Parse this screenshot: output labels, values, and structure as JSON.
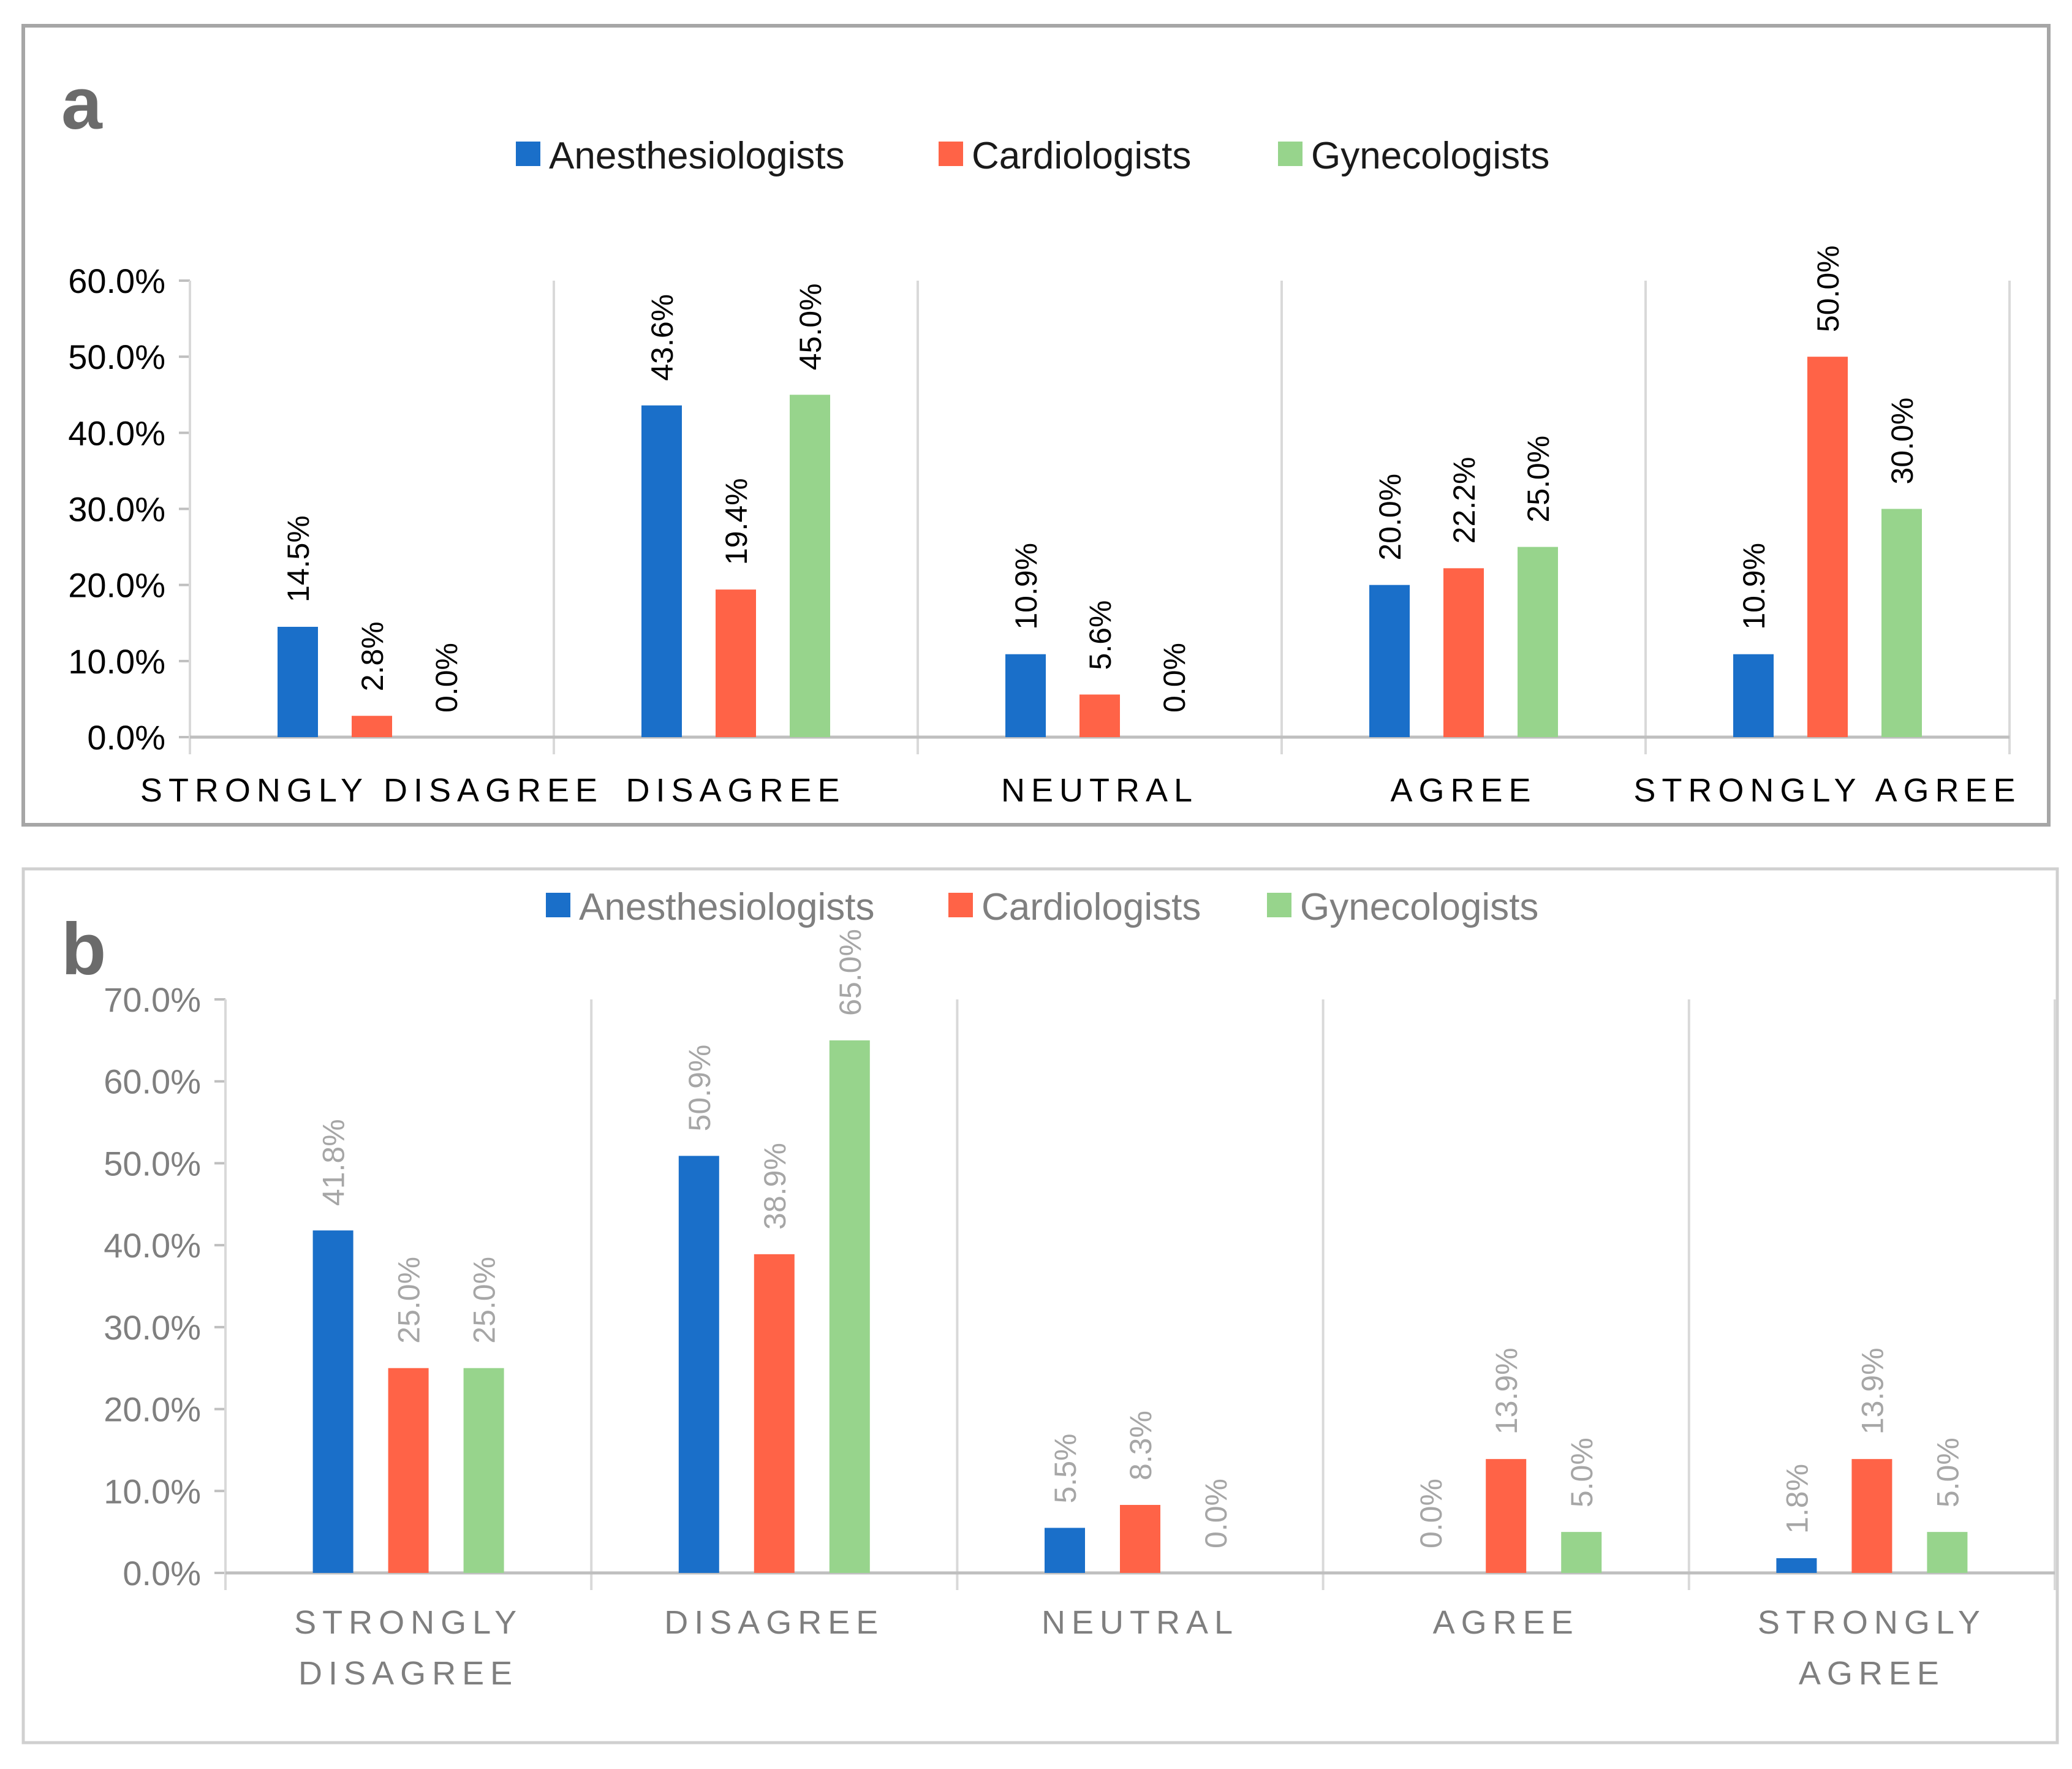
{
  "chart_data": [
    {
      "panel_label": "a",
      "type": "bar",
      "categories": [
        "STRONGLY DISAGREE",
        "DISAGREE",
        "NEUTRAL",
        "AGREE",
        "STRONGLY AGREE"
      ],
      "series": [
        {
          "name": "Anesthesiologists",
          "color": "#1a6fc9",
          "values": [
            14.5,
            43.6,
            10.9,
            20.0,
            10.9
          ],
          "labels": [
            "14.5%",
            "43.6%",
            "10.9%",
            "20.0%",
            "10.9%"
          ]
        },
        {
          "name": "Cardiologists",
          "color": "#ff6347",
          "values": [
            2.8,
            19.4,
            5.6,
            22.2,
            50.0
          ],
          "labels": [
            "2.8%",
            "19.4%",
            "5.6%",
            "22.2%",
            "50.0%"
          ]
        },
        {
          "name": "Gynecologists",
          "color": "#97d48c",
          "values": [
            0.0,
            45.0,
            0.0,
            25.0,
            30.0
          ],
          "labels": [
            "0.0%",
            "45.0%",
            "0.0%",
            "25.0%",
            "30.0%"
          ]
        }
      ],
      "yticks": [
        "0.0%",
        "10.0%",
        "20.0%",
        "30.0%",
        "40.0%",
        "50.0%",
        "60.0%"
      ],
      "ylim": [
        0,
        60
      ],
      "ytick_step": 10,
      "legend_position": "top",
      "title": "",
      "xlabel": "",
      "ylabel": ""
    },
    {
      "panel_label": "b",
      "type": "bar",
      "categories": [
        "STRONGLY DISAGREE",
        "DISAGREE",
        "NEUTRAL",
        "AGREE",
        "STRONGLY AGREE"
      ],
      "category_lines": [
        [
          "STRONGLY",
          "DISAGREE"
        ],
        [
          "DISAGREE"
        ],
        [
          "NEUTRAL"
        ],
        [
          "AGREE"
        ],
        [
          "STRONGLY",
          "AGREE"
        ]
      ],
      "series": [
        {
          "name": "Anesthesiologists",
          "color": "#1a6fc9",
          "values": [
            41.8,
            50.9,
            5.5,
            0.0,
            1.8
          ],
          "labels": [
            "41.8%",
            "50.9%",
            "5.5%",
            "0.0%",
            "1.8%"
          ]
        },
        {
          "name": "Cardiologists",
          "color": "#ff6347",
          "values": [
            25.0,
            38.9,
            8.3,
            13.9,
            13.9
          ],
          "labels": [
            "25.0%",
            "38.9%",
            "8.3%",
            "13.9%",
            "13.9%"
          ]
        },
        {
          "name": "Gynecologists",
          "color": "#97d48c",
          "values": [
            25.0,
            65.0,
            0.0,
            5.0,
            5.0
          ],
          "labels": [
            "25.0%",
            "65.0%",
            "0.0%",
            "5.0%",
            "5.0%"
          ]
        }
      ],
      "yticks": [
        "0.0%",
        "10.0%",
        "20.0%",
        "30.0%",
        "40.0%",
        "50.0%",
        "60.0%",
        "70.0%"
      ],
      "ylim": [
        0,
        70
      ],
      "ytick_step": 10,
      "legend_position": "top",
      "title": "",
      "xlabel": "",
      "ylabel": ""
    }
  ]
}
